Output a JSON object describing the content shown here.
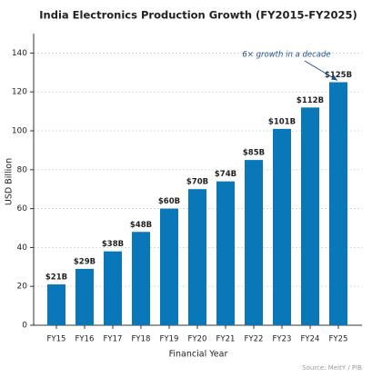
{
  "chart_data": {
    "type": "bar",
    "title": "India Electronics Production Growth (FY2015-FY2025)",
    "x_label": "Financial Year",
    "y_label": "USD Billion",
    "categories": [
      "FY15",
      "FY16",
      "FY17",
      "FY18",
      "FY19",
      "FY20",
      "FY21",
      "FY22",
      "FY23",
      "FY24",
      "FY25"
    ],
    "values": [
      21,
      29,
      38,
      48,
      60,
      70,
      74,
      85,
      101,
      112,
      125
    ],
    "value_labels": [
      "$21B",
      "$29B",
      "$38B",
      "$48B",
      "$60B",
      "$70B",
      "$74B",
      "$85B",
      "$101B",
      "$112B",
      "$125B"
    ],
    "color": "#0a77b9",
    "ylim": [
      0,
      150
    ],
    "yticks": [
      0,
      20,
      40,
      60,
      80,
      100,
      120,
      140
    ],
    "grid": true,
    "annotation": "6× growth in a decade",
    "annotation_color": "#1f4e8c",
    "source": "Source: MeitY / PIB"
  }
}
